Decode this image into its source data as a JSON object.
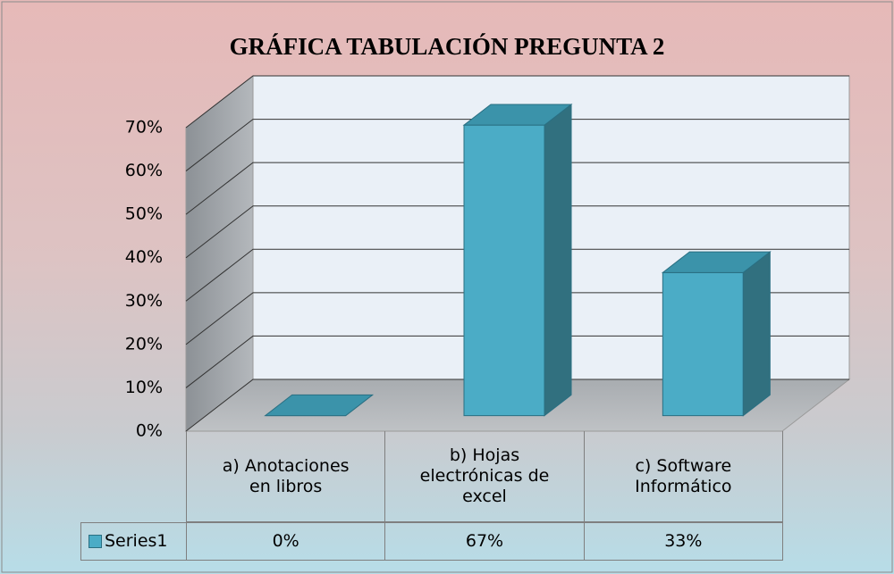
{
  "chart_data": {
    "type": "bar3d",
    "title": "GRÁFICA TABULACIÓN PREGUNTA 2",
    "categories": [
      "a) Anotaciones en libros",
      "b) Hojas electrónicas de excel",
      "c) Software Informático"
    ],
    "series": [
      {
        "name": "Series1",
        "color": "#4bacc6",
        "values": [
          0,
          67,
          33
        ],
        "value_labels": [
          "0%",
          "67%",
          "33%"
        ]
      }
    ],
    "ylim": [
      0,
      70
    ],
    "yticks": [
      {
        "value": 0,
        "label": "0%"
      },
      {
        "value": 10,
        "label": "10%"
      },
      {
        "value": 20,
        "label": "20%"
      },
      {
        "value": 30,
        "label": "30%"
      },
      {
        "value": 40,
        "label": "40%"
      },
      {
        "value": 50,
        "label": "50%"
      },
      {
        "value": 60,
        "label": "60%"
      },
      {
        "value": 70,
        "label": "70%"
      }
    ],
    "grid": true,
    "data_table": true
  }
}
